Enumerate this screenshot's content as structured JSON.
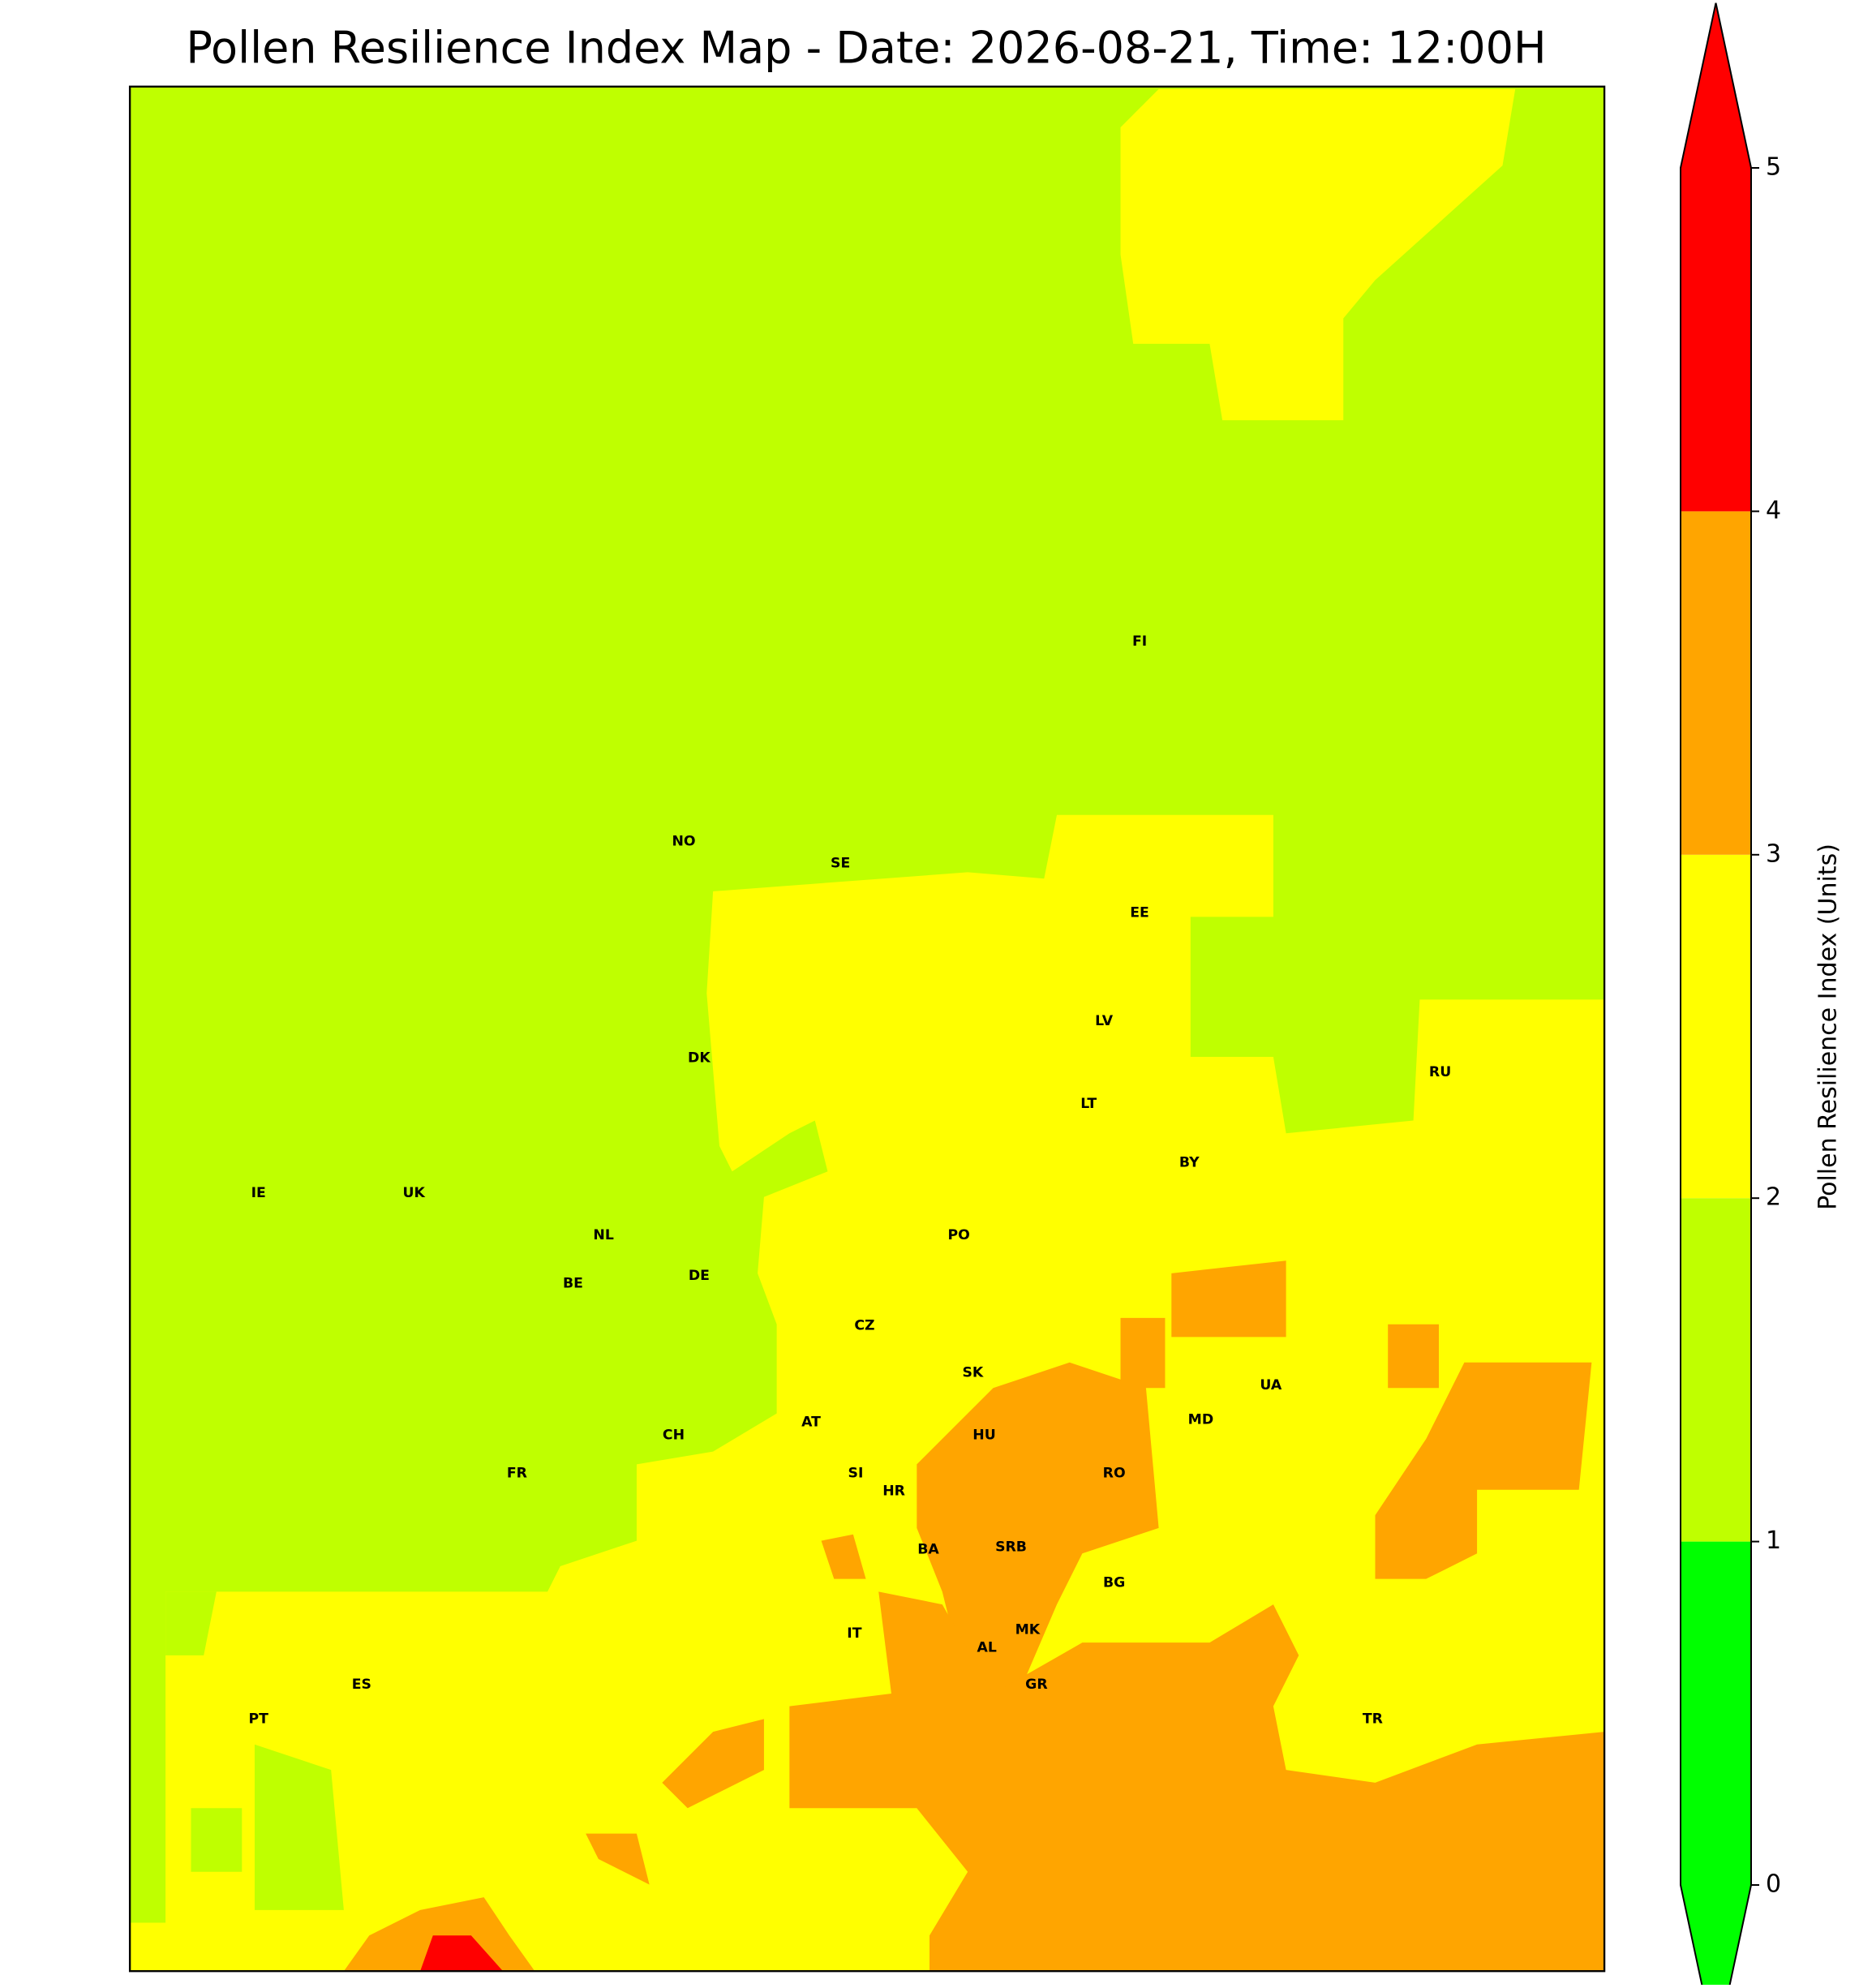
{
  "title": "Pollen Resilience Index Map - Date: 2026-08-21, Time: 12:00H",
  "colorbar": {
    "label": "Pollen Resilience Index (Units)",
    "ticks": [
      0,
      1,
      2,
      3,
      4,
      5
    ],
    "colors": [
      "#00ff00",
      "#bfff00",
      "#ffff00",
      "#ffa500",
      "#ff0000"
    ],
    "extend": "both",
    "under_color": "#00ff00",
    "over_color": "#ff0000"
  },
  "countries": [
    "NO",
    "SE",
    "FI",
    "EE",
    "LV",
    "LT",
    "RU",
    "BY",
    "DK",
    "IE",
    "UK",
    "NL",
    "BE",
    "DE",
    "PO",
    "CZ",
    "SK",
    "UA",
    "AT",
    "CH",
    "HU",
    "MD",
    "FR",
    "RO",
    "SI",
    "HR",
    "SRB",
    "BA",
    "BG",
    "IT",
    "MK",
    "AL",
    "ES",
    "GR",
    "TR",
    "PT"
  ]
}
